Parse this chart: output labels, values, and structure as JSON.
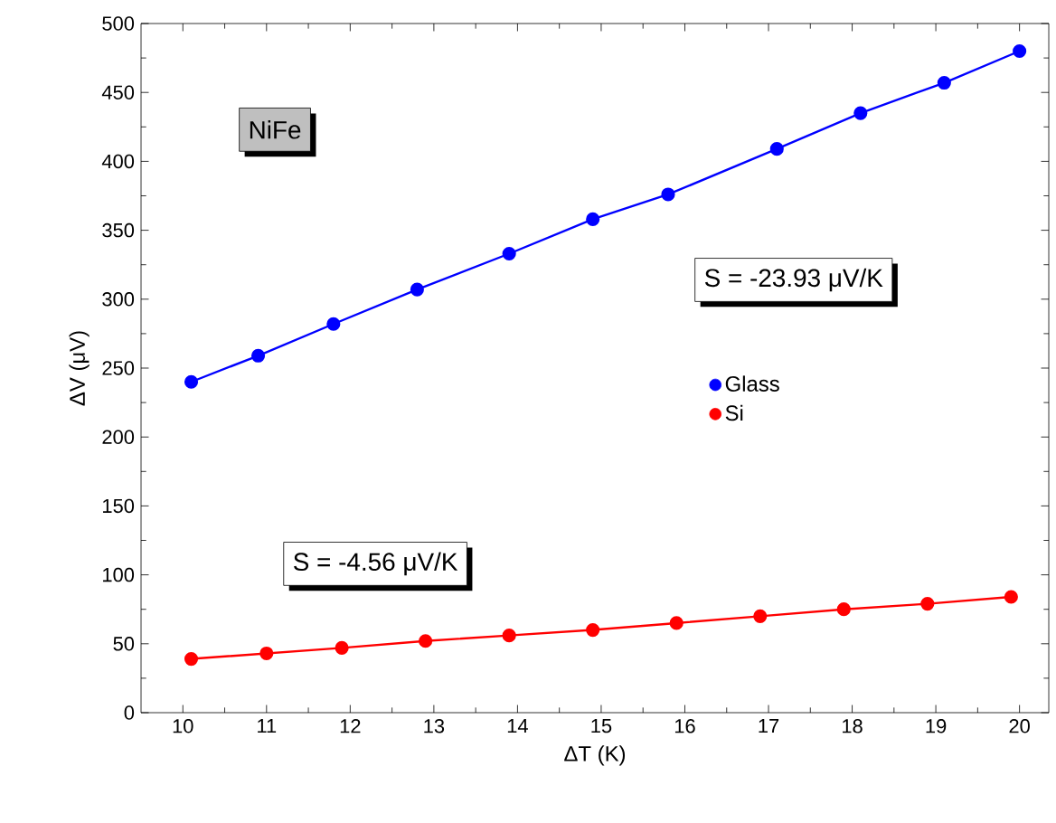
{
  "chart_data": {
    "type": "line",
    "xlabel": "ΔT (K)",
    "ylabel": "ΔV (μV)",
    "xlim": [
      9.5,
      20.35
    ],
    "ylim": [
      0,
      500
    ],
    "xticks": [
      10,
      11,
      12,
      13,
      14,
      15,
      16,
      17,
      18,
      19,
      20
    ],
    "yticks": [
      0,
      50,
      100,
      150,
      200,
      250,
      300,
      350,
      400,
      450,
      500
    ],
    "series": [
      {
        "name": "Glass",
        "color": "#0000ff",
        "x": [
          10.1,
          10.9,
          11.8,
          12.8,
          13.9,
          14.9,
          15.8,
          17.1,
          18.1,
          19.1,
          20.0
        ],
        "values": [
          240,
          259,
          282,
          307,
          333,
          358,
          376,
          409,
          435,
          457,
          480
        ]
      },
      {
        "name": "Si",
        "color": "#ff0000",
        "x": [
          10.1,
          11.0,
          11.9,
          12.9,
          13.9,
          14.9,
          15.9,
          16.9,
          17.9,
          18.9,
          19.9
        ],
        "values": [
          39,
          43,
          47,
          52,
          56,
          60,
          65,
          70,
          75,
          79,
          84
        ]
      }
    ],
    "marker": "circle",
    "legend": "right",
    "annotations": [
      "NiFe",
      "S = -23.93 μV/K",
      "S = -4.56 μV/K"
    ]
  }
}
